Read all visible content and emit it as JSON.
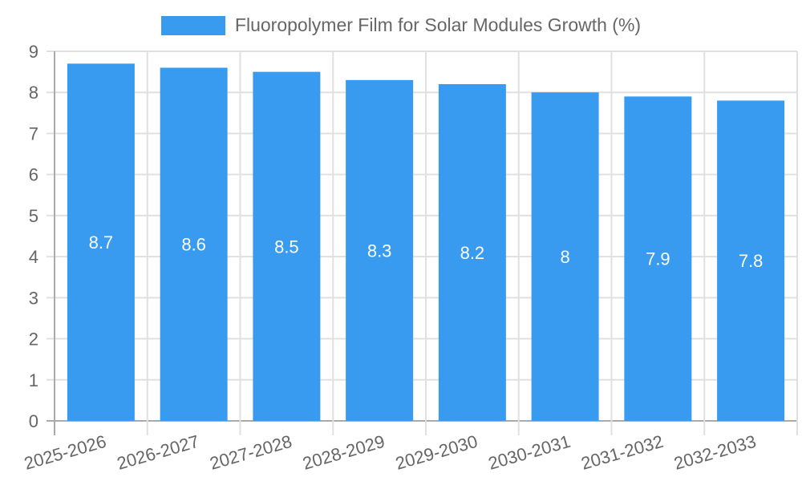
{
  "legend": {
    "label": "Fluoropolymer Film for Solar Modules Growth (%)",
    "color": "#389bf0"
  },
  "colors": {
    "bar": "#389bf0",
    "grid": "#e0e0e0",
    "axis": "#aaaaaa",
    "text": "#666666"
  },
  "chart_data": {
    "type": "bar",
    "title": "",
    "categories": [
      "2025-2026",
      "2026-2027",
      "2027-2028",
      "2028-2029",
      "2029-2030",
      "2030-2031",
      "2031-2032",
      "2032-2033"
    ],
    "series": [
      {
        "name": "Fluoropolymer Film for Solar Modules Growth (%)",
        "values": [
          8.7,
          8.6,
          8.5,
          8.3,
          8.2,
          8,
          7.9,
          7.8
        ]
      }
    ],
    "value_labels": [
      "8.7",
      "8.6",
      "8.5",
      "8.3",
      "8.2",
      "8",
      "7.9",
      "7.8"
    ],
    "xlabel": "",
    "ylabel": "",
    "ylim": [
      0,
      9
    ],
    "yticks": [
      0,
      1,
      2,
      3,
      4,
      5,
      6,
      7,
      8,
      9
    ],
    "grid": true,
    "legend_position": "top"
  }
}
